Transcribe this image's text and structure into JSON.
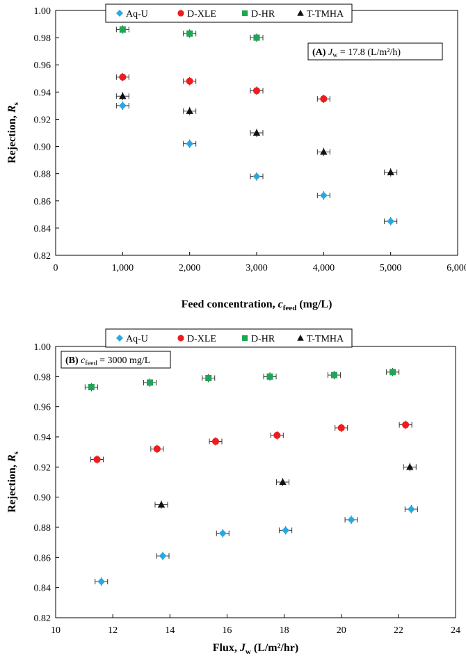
{
  "chart_data": [
    {
      "type": "scatter",
      "annotation": {
        "prefix": "(A)",
        "var": "J",
        "sub": "w",
        "rest": " = 17.8 (L/m²/h)"
      },
      "xlabel": {
        "main": "Feed concentration, ",
        "var": "c",
        "sub": "feed",
        "unit": " (mg/L)"
      },
      "ylabel": {
        "main": "Rejection, ",
        "var": "R",
        "sub": "s"
      },
      "xlim": [
        0,
        6000
      ],
      "ylim": [
        0.82,
        1.0
      ],
      "xticks": [
        "0",
        "1,000",
        "2,000",
        "3,000",
        "4,000",
        "5,000",
        "6,000"
      ],
      "yticks": [
        "0.82",
        "0.84",
        "0.86",
        "0.88",
        "0.90",
        "0.92",
        "0.94",
        "0.96",
        "0.98",
        "1.00"
      ],
      "grid": false,
      "legend_position": "top",
      "series": [
        {
          "name": "Aq-U",
          "marker": "diamond",
          "color": "#29a8e0",
          "x": [
            1000,
            2000,
            3000,
            4000,
            5000
          ],
          "y": [
            0.93,
            0.902,
            0.878,
            0.864,
            0.845
          ]
        },
        {
          "name": "D-XLE",
          "marker": "circle",
          "color": "#ee1c1c",
          "x": [
            1000,
            2000,
            3000,
            4000
          ],
          "y": [
            0.951,
            0.948,
            0.941,
            0.935
          ]
        },
        {
          "name": "D-HR",
          "marker": "square",
          "color": "#1fa556",
          "x": [
            1000,
            2000,
            3000
          ],
          "y": [
            0.986,
            0.983,
            0.98
          ]
        },
        {
          "name": "T-TMHA",
          "marker": "triangle",
          "color": "#111111",
          "x": [
            1000,
            2000,
            3000,
            4000,
            5000
          ],
          "y": [
            0.937,
            0.926,
            0.91,
            0.896,
            0.881
          ]
        }
      ]
    },
    {
      "type": "scatter",
      "annotation": {
        "prefix": "(B)",
        "var": "c",
        "sub": "feed",
        "rest": " = 3000 mg/L"
      },
      "xlabel": {
        "main": "Flux, ",
        "var": "J",
        "sub": "w",
        "unit": " (L/m²/hr)"
      },
      "ylabel": {
        "main": "Rejection, ",
        "var": "R",
        "sub": "s"
      },
      "xlim": [
        10,
        24
      ],
      "ylim": [
        0.82,
        1.0
      ],
      "xticks": [
        "10",
        "12",
        "14",
        "16",
        "18",
        "20",
        "22",
        "24"
      ],
      "yticks": [
        "0.82",
        "0.84",
        "0.86",
        "0.88",
        "0.90",
        "0.92",
        "0.94",
        "0.96",
        "0.98",
        "1.00"
      ],
      "grid": false,
      "legend_position": "top",
      "series": [
        {
          "name": "Aq-U",
          "marker": "diamond",
          "color": "#29a8e0",
          "x": [
            11.6,
            13.75,
            15.85,
            18.05,
            20.35,
            22.45
          ],
          "y": [
            0.844,
            0.861,
            0.876,
            0.878,
            0.885,
            0.892
          ]
        },
        {
          "name": "D-XLE",
          "marker": "circle",
          "color": "#ee1c1c",
          "x": [
            11.45,
            13.55,
            15.6,
            17.75,
            20.0,
            22.25
          ],
          "y": [
            0.925,
            0.932,
            0.937,
            0.941,
            0.946,
            0.948
          ]
        },
        {
          "name": "D-HR",
          "marker": "square",
          "color": "#1fa556",
          "x": [
            11.25,
            13.3,
            15.35,
            17.5,
            19.75,
            21.8
          ],
          "y": [
            0.973,
            0.976,
            0.979,
            0.98,
            0.981,
            0.983
          ]
        },
        {
          "name": "T-TMHA",
          "marker": "triangle",
          "color": "#111111",
          "x": [
            13.7,
            17.95,
            22.4
          ],
          "y": [
            0.895,
            0.91,
            0.92
          ]
        }
      ]
    }
  ]
}
